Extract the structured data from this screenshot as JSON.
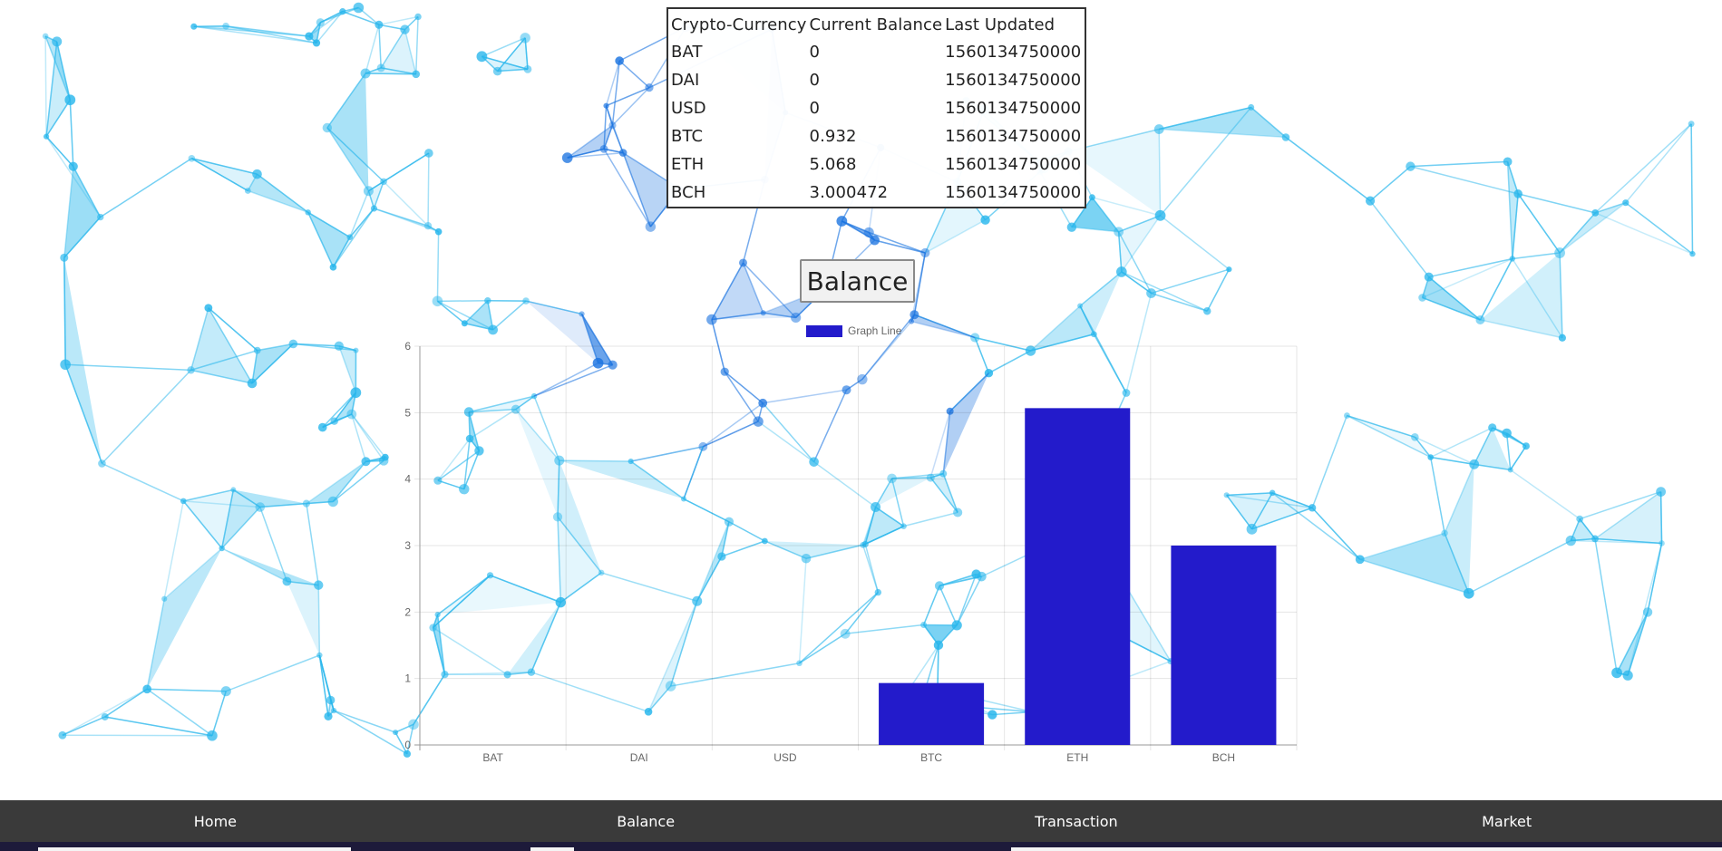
{
  "table": {
    "headers": [
      "Crypto-Currency",
      "Current Balance",
      "Last Updated"
    ],
    "rows": [
      {
        "currency": "BAT",
        "balance": "0",
        "updated": "1560134750000"
      },
      {
        "currency": "DAI",
        "balance": "0",
        "updated": "1560134750000"
      },
      {
        "currency": "USD",
        "balance": "0",
        "updated": "1560134750000"
      },
      {
        "currency": "BTC",
        "balance": "0.932",
        "updated": "1560134750000"
      },
      {
        "currency": "ETH",
        "balance": "5.068",
        "updated": "1560134750000"
      },
      {
        "currency": "BCH",
        "balance": "3.000472",
        "updated": "1560134750000"
      }
    ]
  },
  "balance_button_label": "Balance",
  "chart_data": {
    "type": "bar",
    "categories": [
      "BAT",
      "DAI",
      "USD",
      "BTC",
      "ETH",
      "BCH"
    ],
    "series": [
      {
        "name": "Graph Line",
        "values": [
          0,
          0,
          0,
          0.932,
          5.068,
          3.000472
        ],
        "color": "#231bcb"
      }
    ],
    "yticks": [
      "0",
      "1",
      "2",
      "3",
      "4",
      "5",
      "6"
    ],
    "ylim": [
      0,
      6
    ],
    "legend": "top-center",
    "grid": true
  },
  "nav": {
    "items": [
      {
        "label": "Home"
      },
      {
        "label": "Balance"
      },
      {
        "label": "Transaction"
      },
      {
        "label": "Market"
      }
    ]
  },
  "colors": {
    "bar": "#231bcb",
    "nav_bg": "#3a3a3a",
    "network_light": "#27b6ec",
    "network_dark": "#1a73e0"
  }
}
